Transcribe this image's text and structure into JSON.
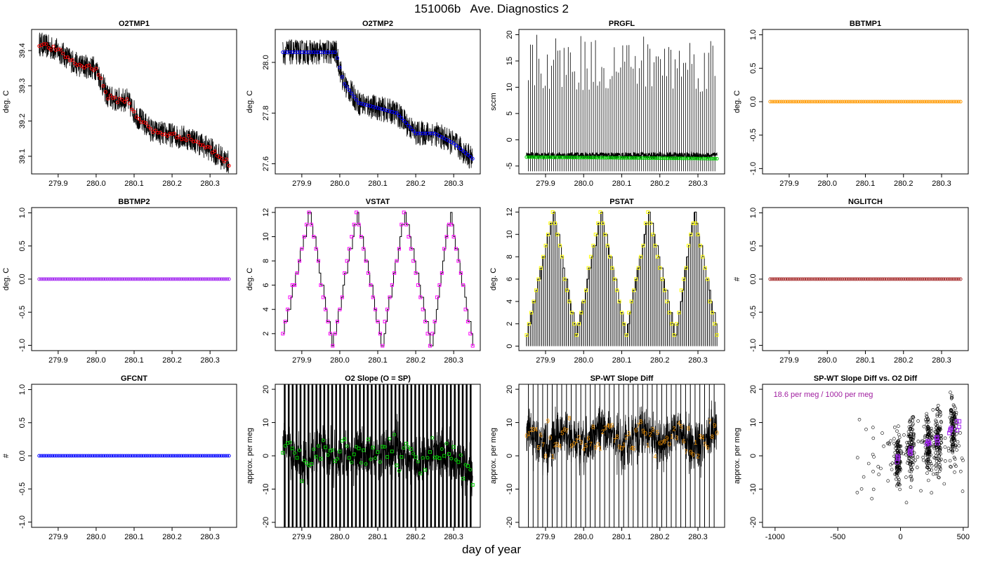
{
  "page": {
    "title": "151006b   Ave. Diagnostics 2",
    "xlabel": "day of year"
  },
  "colors": {
    "raw": "#000000",
    "red": "#ff0000",
    "blue": "#0000ff",
    "green": "#00cd00",
    "orange": "#ff9900",
    "purple": "#a020f0",
    "magenta": "#ff00ff",
    "yellow": "#ffff00",
    "brown": "#a52a2a",
    "purple_text": "#a020a0"
  },
  "chart_data": [
    {
      "id": "o2tmp1",
      "type": "scatter",
      "title": "O2TMP1",
      "ylabel": "deg. C",
      "xlim": [
        279.83,
        280.37
      ],
      "ylim": [
        39.05,
        39.46
      ],
      "xticks": [
        279.9,
        280.0,
        280.1,
        280.2,
        280.3
      ],
      "xtick_labels": [
        "279.9",
        "280.0",
        "280.1",
        "280.2",
        "280.3"
      ],
      "yticks": [
        39.1,
        39.2,
        39.3,
        39.4
      ],
      "ytick_labels": [
        "39.1",
        "39.2",
        "39.3",
        "39.4"
      ],
      "series": [
        {
          "marker": "circle",
          "color": "red",
          "x": [
            279.85,
            279.9,
            279.95,
            280.0,
            280.03,
            280.05,
            280.08,
            280.11,
            280.15,
            280.2,
            280.25,
            280.3,
            280.35
          ],
          "y": [
            39.42,
            39.4,
            39.36,
            39.35,
            39.27,
            39.26,
            39.26,
            39.21,
            39.17,
            39.16,
            39.15,
            39.12,
            39.08
          ]
        }
      ]
    },
    {
      "id": "o2tmp2",
      "type": "scatter",
      "title": "O2TMP2",
      "ylabel": "deg. C",
      "xlim": [
        279.83,
        280.37
      ],
      "ylim": [
        27.56,
        28.13
      ],
      "xticks": [
        279.9,
        280.0,
        280.1,
        280.2,
        280.3
      ],
      "xtick_labels": [
        "279.9",
        "280.0",
        "280.1",
        "280.2",
        "280.3"
      ],
      "yticks": [
        27.6,
        27.8,
        28.0
      ],
      "ytick_labels": [
        "27.6",
        "27.8",
        "28.0"
      ],
      "series": [
        {
          "marker": "circle",
          "color": "blue",
          "x": [
            279.85,
            279.9,
            279.95,
            279.99,
            280.01,
            280.05,
            280.1,
            280.15,
            280.2,
            280.25,
            280.3,
            280.35
          ],
          "y": [
            28.04,
            28.04,
            28.04,
            28.04,
            27.92,
            27.84,
            27.82,
            27.8,
            27.72,
            27.72,
            27.68,
            27.62
          ]
        }
      ]
    },
    {
      "id": "prgfl",
      "type": "scatter",
      "title": "PRGFL",
      "ylabel": "sccm",
      "xlim": [
        279.83,
        280.37
      ],
      "ylim": [
        -6.5,
        21
      ],
      "xticks": [
        279.9,
        280.0,
        280.1,
        280.2,
        280.3
      ],
      "xtick_labels": [
        "279.9",
        "280.0",
        "280.1",
        "280.2",
        "280.3"
      ],
      "yticks": [
        -5,
        0,
        5,
        10,
        15,
        20
      ],
      "ytick_labels": [
        "-5",
        "0",
        "5",
        "10",
        "15",
        "20"
      ],
      "series": [
        {
          "marker": "circle",
          "color": "green",
          "x": [
            279.85,
            280.35
          ],
          "y": [
            -3.3,
            -3.6
          ]
        }
      ]
    },
    {
      "id": "bbtmp1",
      "type": "scatter",
      "title": "BBTMP1",
      "ylabel": "deg. C",
      "xlim": [
        279.83,
        280.37
      ],
      "ylim": [
        -1.08,
        1.08
      ],
      "xticks": [
        279.9,
        280.0,
        280.1,
        280.2,
        280.3
      ],
      "xtick_labels": [
        "279.9",
        "280.0",
        "280.1",
        "280.2",
        "280.3"
      ],
      "yticks": [
        -1.0,
        -0.5,
        0.0,
        0.5,
        1.0
      ],
      "ytick_labels": [
        "-1.0",
        "-0.5",
        "0.0",
        "0.5",
        "1.0"
      ],
      "series": [
        {
          "marker": "circle",
          "color": "orange",
          "x": [
            279.85,
            280.35
          ],
          "y": [
            0,
            0
          ]
        }
      ]
    },
    {
      "id": "bbtmp2",
      "type": "scatter",
      "title": "BBTMP2",
      "ylabel": "deg. C",
      "xlim": [
        279.83,
        280.37
      ],
      "ylim": [
        -1.08,
        1.08
      ],
      "xticks": [
        279.9,
        280.0,
        280.1,
        280.2,
        280.3
      ],
      "xtick_labels": [
        "279.9",
        "280.0",
        "280.1",
        "280.2",
        "280.3"
      ],
      "yticks": [
        -1.0,
        -0.5,
        0.0,
        0.5,
        1.0
      ],
      "ytick_labels": [
        "-1.0",
        "-0.5",
        "0.0",
        "0.5",
        "1.0"
      ],
      "series": [
        {
          "marker": "circle",
          "color": "purple",
          "x": [
            279.85,
            280.35
          ],
          "y": [
            0,
            0
          ]
        }
      ]
    },
    {
      "id": "vstat",
      "type": "line",
      "title": "VSTAT",
      "ylabel": "deg. C",
      "xlim": [
        279.83,
        280.37
      ],
      "ylim": [
        0.6,
        12.4
      ],
      "xticks": [
        279.9,
        280.0,
        280.1,
        280.2,
        280.3
      ],
      "xtick_labels": [
        "279.9",
        "280.0",
        "280.1",
        "280.2",
        "280.3"
      ],
      "yticks": [
        2,
        4,
        6,
        8,
        10,
        12
      ],
      "ytick_labels": [
        "2",
        "4",
        "6",
        "8",
        "10",
        "12"
      ],
      "series": [
        {
          "marker": "square",
          "color": "magenta",
          "x": [
            279.85,
            279.92,
            279.98,
            280.045,
            280.11,
            280.17,
            280.24,
            280.29,
            280.35
          ],
          "y": [
            2,
            12,
            1,
            12,
            1,
            12,
            1,
            12,
            1
          ]
        }
      ]
    },
    {
      "id": "pstat",
      "type": "line",
      "title": "PSTAT",
      "ylabel": "deg. C",
      "xlim": [
        279.83,
        280.37
      ],
      "ylim": [
        -0.4,
        12.4
      ],
      "xticks": [
        279.9,
        280.0,
        280.1,
        280.2,
        280.3
      ],
      "xtick_labels": [
        "279.9",
        "280.0",
        "280.1",
        "280.2",
        "280.3"
      ],
      "yticks": [
        0,
        2,
        4,
        6,
        8,
        10,
        12
      ],
      "ytick_labels": [
        "0",
        "2",
        "4",
        "6",
        "8",
        "10",
        "12"
      ],
      "series": [
        {
          "marker": "square",
          "color": "yellow",
          "x": [
            279.85,
            279.92,
            279.98,
            280.045,
            280.11,
            280.17,
            280.24,
            280.29,
            280.35
          ],
          "y": [
            1,
            12,
            1,
            12,
            1,
            12,
            1,
            12,
            1
          ]
        }
      ]
    },
    {
      "id": "nglitch",
      "type": "scatter",
      "title": "NGLITCH",
      "ylabel": "#",
      "xlim": [
        279.83,
        280.37
      ],
      "ylim": [
        -1.08,
        1.08
      ],
      "xticks": [
        279.9,
        280.0,
        280.1,
        280.2,
        280.3
      ],
      "xtick_labels": [
        "279.9",
        "280.0",
        "280.1",
        "280.2",
        "280.3"
      ],
      "yticks": [
        -1.0,
        -0.5,
        0.0,
        0.5,
        1.0
      ],
      "ytick_labels": [
        "-1.0",
        "-0.5",
        "0.0",
        "0.5",
        "1.0"
      ],
      "series": [
        {
          "marker": "circle",
          "color": "brown",
          "x": [
            279.85,
            280.35
          ],
          "y": [
            0,
            0
          ]
        }
      ]
    },
    {
      "id": "gfcnt",
      "type": "scatter",
      "title": "GFCNT",
      "ylabel": "#",
      "xlim": [
        279.83,
        280.37
      ],
      "ylim": [
        -1.08,
        1.08
      ],
      "xticks": [
        279.9,
        280.0,
        280.1,
        280.2,
        280.3
      ],
      "xtick_labels": [
        "279.9",
        "280.0",
        "280.1",
        "280.2",
        "280.3"
      ],
      "yticks": [
        -1.0,
        -0.5,
        0.0,
        0.5,
        1.0
      ],
      "ytick_labels": [
        "-1.0",
        "-0.5",
        "0.0",
        "0.5",
        "1.0"
      ],
      "series": [
        {
          "marker": "circle",
          "color": "blue",
          "x": [
            279.85,
            280.35
          ],
          "y": [
            0,
            0
          ]
        }
      ]
    },
    {
      "id": "o2slope",
      "type": "scatter",
      "title": "O2 Slope (O = SP)",
      "ylabel": "approx. per meg",
      "xlim": [
        279.83,
        280.37
      ],
      "ylim": [
        -21.5,
        21.5
      ],
      "xticks": [
        279.9,
        280.0,
        280.1,
        280.2,
        280.3
      ],
      "xtick_labels": [
        "279.9",
        "280.0",
        "280.1",
        "280.2",
        "280.3"
      ],
      "yticks": [
        -20,
        -10,
        0,
        10,
        20
      ],
      "ytick_labels": [
        "-20",
        "-10",
        "0",
        "10",
        "20"
      ],
      "series": [
        {
          "marker": "mixed",
          "color": "green",
          "x": [
            279.85,
            279.9,
            279.95,
            280.0,
            280.05,
            280.1,
            280.15,
            280.2,
            280.25,
            280.3,
            280.35
          ],
          "y": [
            4,
            -3,
            2,
            -1,
            1,
            0,
            2,
            -2,
            1,
            -1,
            -6
          ]
        }
      ]
    },
    {
      "id": "spwt",
      "type": "scatter",
      "title": "SP-WT Slope Diff",
      "ylabel": "approx. per meg",
      "xlim": [
        279.83,
        280.37
      ],
      "ylim": [
        -21.5,
        21.5
      ],
      "xticks": [
        279.9,
        280.0,
        280.1,
        280.2,
        280.3
      ],
      "xtick_labels": [
        "279.9",
        "280.0",
        "280.1",
        "280.2",
        "280.3"
      ],
      "yticks": [
        -20,
        -10,
        0,
        10,
        20
      ],
      "ytick_labels": [
        "-20",
        "-10",
        "0",
        "10",
        "20"
      ],
      "series": [
        {
          "marker": "digits",
          "color": "orange",
          "x": [
            279.85,
            279.9,
            279.95,
            280.0,
            280.05,
            280.1,
            280.15,
            280.2,
            280.25,
            280.3,
            280.35
          ],
          "y": [
            8,
            3,
            7,
            2,
            9,
            3,
            8,
            4,
            7,
            2,
            9
          ]
        }
      ]
    },
    {
      "id": "spwt_vs_o2",
      "type": "scatter",
      "title": "SP-WT Slope Diff vs. O2 Diff",
      "ylabel": "approx. per meg",
      "xlim": [
        -1100,
        540
      ],
      "ylim": [
        -21.5,
        21.5
      ],
      "xticks": [
        -1000,
        -500,
        0,
        500
      ],
      "xtick_labels": [
        "-1000",
        "-500",
        "0",
        "500"
      ],
      "yticks": [
        -20,
        -10,
        0,
        10,
        20
      ],
      "ytick_labels": [
        "-20",
        "-10",
        "0",
        "10",
        "20"
      ],
      "annotation": "18.6 per meg / 1000 per meg",
      "series": [
        {
          "marker": "square",
          "color": "purple",
          "x": [
            -20,
            80,
            220,
            290,
            400,
            460
          ],
          "y": [
            -1,
            2,
            4,
            5,
            8,
            9
          ]
        }
      ]
    }
  ]
}
